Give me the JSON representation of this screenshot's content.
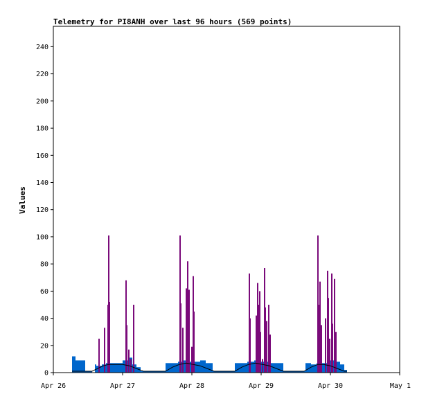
{
  "chart_data": {
    "type": "bar",
    "title": "Telemetry for PI8ANH over last 96 hours (569 points)",
    "xlabel": "",
    "ylabel": "Values",
    "xlim": [
      0,
      5
    ],
    "ylim": [
      0,
      255
    ],
    "y_ticks": [
      0,
      20,
      40,
      60,
      80,
      100,
      120,
      140,
      160,
      180,
      200,
      220,
      240
    ],
    "x_ticks": [
      {
        "label": "Apr 26",
        "x": 0
      },
      {
        "label": "Apr 27",
        "x": 1
      },
      {
        "label": "Apr 28",
        "x": 2
      },
      {
        "label": "Apr 29",
        "x": 3
      },
      {
        "label": "Apr 30",
        "x": 4
      },
      {
        "label": "May 1",
        "x": 5
      }
    ],
    "grid": false,
    "legend": "none",
    "series": [
      {
        "color": "#0066cc",
        "bars": [
          [
            0.27,
            0.32,
            12
          ],
          [
            0.32,
            0.36,
            9
          ],
          [
            0.36,
            0.46,
            9
          ],
          [
            0.46,
            0.56,
            1
          ],
          [
            0.6,
            0.62,
            6
          ],
          [
            0.62,
            0.7,
            5
          ],
          [
            0.7,
            0.76,
            6
          ],
          [
            0.76,
            0.84,
            7
          ],
          [
            0.84,
            1.0,
            7
          ],
          [
            1.0,
            1.08,
            9
          ],
          [
            1.08,
            1.14,
            11
          ],
          [
            1.14,
            1.2,
            6
          ],
          [
            1.2,
            1.26,
            4
          ],
          [
            1.26,
            1.4,
            1
          ],
          [
            1.4,
            1.62,
            1
          ],
          [
            1.62,
            1.7,
            7
          ],
          [
            1.7,
            1.8,
            7
          ],
          [
            1.8,
            1.88,
            8
          ],
          [
            1.88,
            1.96,
            9
          ],
          [
            1.96,
            2.04,
            8
          ],
          [
            2.04,
            2.12,
            8
          ],
          [
            2.12,
            2.2,
            9
          ],
          [
            2.2,
            2.3,
            7
          ],
          [
            2.3,
            2.4,
            1
          ],
          [
            2.4,
            2.62,
            1
          ],
          [
            2.62,
            2.7,
            7
          ],
          [
            2.7,
            2.8,
            7
          ],
          [
            2.8,
            2.9,
            8
          ],
          [
            2.9,
            3.0,
            9
          ],
          [
            3.0,
            3.1,
            8
          ],
          [
            3.1,
            3.2,
            7
          ],
          [
            3.2,
            3.32,
            7
          ],
          [
            3.32,
            3.48,
            1
          ],
          [
            3.48,
            3.64,
            1
          ],
          [
            3.64,
            3.72,
            7
          ],
          [
            3.72,
            3.8,
            6
          ],
          [
            3.8,
            3.9,
            7
          ],
          [
            3.9,
            4.0,
            7
          ],
          [
            4.0,
            4.08,
            9
          ],
          [
            4.08,
            4.14,
            8
          ],
          [
            4.14,
            4.2,
            6
          ],
          [
            4.2,
            4.24,
            2
          ]
        ]
      },
      {
        "color": "#7a0a7a",
        "spikes": [
          [
            0.66,
            25
          ],
          [
            0.74,
            33
          ],
          [
            0.79,
            50
          ],
          [
            0.8,
            101
          ],
          [
            0.81,
            52
          ],
          [
            1.05,
            68
          ],
          [
            1.06,
            35
          ],
          [
            1.09,
            17
          ],
          [
            1.12,
            10
          ],
          [
            1.16,
            50
          ],
          [
            1.83,
            101
          ],
          [
            1.84,
            51
          ],
          [
            1.87,
            33
          ],
          [
            1.92,
            62
          ],
          [
            1.93,
            60
          ],
          [
            1.94,
            82
          ],
          [
            1.95,
            60
          ],
          [
            1.96,
            61
          ],
          [
            2.0,
            19
          ],
          [
            2.02,
            71
          ],
          [
            2.03,
            45
          ],
          [
            2.83,
            73
          ],
          [
            2.84,
            40
          ],
          [
            2.93,
            42
          ],
          [
            2.95,
            66
          ],
          [
            2.96,
            50
          ],
          [
            2.98,
            60
          ],
          [
            2.99,
            30
          ],
          [
            3.02,
            10
          ],
          [
            3.05,
            77
          ],
          [
            3.06,
            48
          ],
          [
            3.08,
            38
          ],
          [
            3.11,
            50
          ],
          [
            3.13,
            28
          ],
          [
            3.82,
            101
          ],
          [
            3.83,
            50
          ],
          [
            3.85,
            67
          ],
          [
            3.87,
            35
          ],
          [
            3.93,
            40
          ],
          [
            3.96,
            75
          ],
          [
            3.97,
            55
          ],
          [
            3.99,
            25
          ],
          [
            4.02,
            73
          ],
          [
            4.03,
            36
          ],
          [
            4.06,
            69
          ],
          [
            4.08,
            30
          ]
        ]
      },
      {
        "color": "#000000",
        "line": [
          [
            0.27,
            1
          ],
          [
            0.45,
            1
          ],
          [
            0.56,
            1
          ],
          [
            0.64,
            3
          ],
          [
            0.72,
            5
          ],
          [
            0.8,
            6
          ],
          [
            0.9,
            6
          ],
          [
            1.0,
            6
          ],
          [
            1.1,
            5
          ],
          [
            1.2,
            3
          ],
          [
            1.3,
            1
          ],
          [
            1.62,
            1
          ],
          [
            1.72,
            4
          ],
          [
            1.82,
            6
          ],
          [
            1.92,
            7
          ],
          [
            2.02,
            6
          ],
          [
            2.12,
            5
          ],
          [
            2.22,
            3
          ],
          [
            2.32,
            1
          ],
          [
            2.62,
            1
          ],
          [
            2.72,
            4
          ],
          [
            2.82,
            6
          ],
          [
            2.92,
            7
          ],
          [
            3.02,
            6
          ],
          [
            3.12,
            5
          ],
          [
            3.22,
            3
          ],
          [
            3.32,
            1
          ],
          [
            3.62,
            1
          ],
          [
            3.72,
            4
          ],
          [
            3.82,
            6
          ],
          [
            3.9,
            6
          ],
          [
            4.0,
            5
          ],
          [
            4.1,
            3
          ],
          [
            4.2,
            1
          ],
          [
            4.24,
            1
          ]
        ]
      }
    ]
  }
}
